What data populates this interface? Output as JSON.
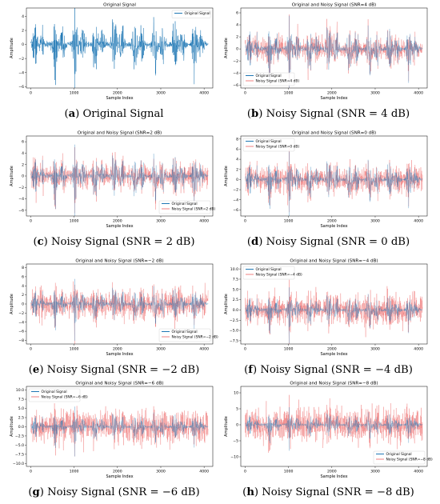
{
  "colors": {
    "original": "#1f77b4",
    "noisy": "#f08080"
  },
  "panels": [
    {
      "id": "a",
      "caption_letter": "a",
      "caption_text": "Original Signal",
      "chart_data": {
        "type": "line",
        "title": "Original Signal",
        "xlabel": "Sample Index",
        "ylabel": "Amplitude",
        "xlim": [
          -100,
          4200
        ],
        "ylim": [
          -6.2,
          5.2
        ],
        "xticks": [
          "0",
          "1000",
          "2000",
          "3000",
          "4000"
        ],
        "xtick_values": [
          0,
          1000,
          2000,
          3000,
          4000
        ],
        "yticks": [
          "−6",
          "−4",
          "−2",
          "0",
          "2",
          "4"
        ],
        "ytick_values": [
          -6,
          -4,
          -2,
          0,
          2,
          4
        ],
        "legend_position": "top-right",
        "series": [
          {
            "name": "Original Signal",
            "color": "#1f77b4",
            "peak_amplitude": 5.0,
            "sample_count": 4096
          }
        ]
      }
    },
    {
      "id": "b",
      "caption_letter": "b",
      "caption_text": "Noisy Signal (SNR = 4 dB)",
      "chart_data": {
        "type": "line",
        "title": "Original and Noisy Signal (SNR=4 dB)",
        "xlabel": "Sample Index",
        "ylabel": "Amplitude",
        "xlim": [
          -100,
          4200
        ],
        "ylim": [
          -6.5,
          6.8
        ],
        "xticks": [
          "0",
          "1000",
          "2000",
          "3000",
          "4000"
        ],
        "xtick_values": [
          0,
          1000,
          2000,
          3000,
          4000
        ],
        "yticks": [
          "−6",
          "−4",
          "−2",
          "0",
          "2",
          "4",
          "6"
        ],
        "ytick_values": [
          -6,
          -4,
          -2,
          0,
          2,
          4,
          6
        ],
        "legend_position": "bottom-left",
        "series": [
          {
            "name": "Original Signal",
            "color": "#1f77b4",
            "peak_amplitude": 5.0
          },
          {
            "name": "Noisy Signal (SNR=4 dB)",
            "color": "#f08080",
            "noise_amplitude": 1.8
          }
        ]
      }
    },
    {
      "id": "c",
      "caption_letter": "c",
      "caption_text": "Noisy Signal (SNR = 2 dB)",
      "chart_data": {
        "type": "line",
        "title": "Original and Noisy Signal (SNR=2 dB)",
        "xlabel": "Sample Index",
        "ylabel": "Amplitude",
        "xlim": [
          -100,
          4200
        ],
        "ylim": [
          -7,
          7
        ],
        "xticks": [
          "0",
          "1000",
          "2000",
          "3000",
          "4000"
        ],
        "xtick_values": [
          0,
          1000,
          2000,
          3000,
          4000
        ],
        "yticks": [
          "−6",
          "−4",
          "−2",
          "0",
          "2",
          "4",
          "6"
        ],
        "ytick_values": [
          -6,
          -4,
          -2,
          0,
          2,
          4,
          6
        ],
        "legend_position": "bottom-right",
        "series": [
          {
            "name": "Original Signal",
            "color": "#1f77b4",
            "peak_amplitude": 5.0
          },
          {
            "name": "Noisy Signal (SNR=2 dB)",
            "color": "#f08080",
            "noise_amplitude": 2.2
          }
        ]
      }
    },
    {
      "id": "d",
      "caption_letter": "d",
      "caption_text": "Noisy Signal (SNR = 0 dB)",
      "chart_data": {
        "type": "line",
        "title": "Original and Noisy Signal (SNR=0 dB)",
        "xlabel": "Sample Index",
        "ylabel": "Amplitude",
        "xlim": [
          -100,
          4200
        ],
        "ylim": [
          -7.2,
          8.6
        ],
        "xticks": [
          "0",
          "1000",
          "2000",
          "3000",
          "4000"
        ],
        "xtick_values": [
          0,
          1000,
          2000,
          3000,
          4000
        ],
        "yticks": [
          "−6",
          "−4",
          "−2",
          "0",
          "2",
          "4",
          "6",
          "8"
        ],
        "ytick_values": [
          -6,
          -4,
          -2,
          0,
          2,
          4,
          6,
          8
        ],
        "legend_position": "top-left",
        "series": [
          {
            "name": "Original Signal",
            "color": "#1f77b4",
            "peak_amplitude": 5.0
          },
          {
            "name": "Noisy Signal (SNR=0 dB)",
            "color": "#f08080",
            "noise_amplitude": 2.8
          }
        ]
      }
    },
    {
      "id": "e",
      "caption_letter": "e",
      "caption_text": "Noisy Signal (SNR = −2 dB)",
      "chart_data": {
        "type": "line",
        "title": "Original and Noisy Signal (SNR=−2 dB)",
        "xlabel": "Sample Index",
        "ylabel": "Amplitude",
        "xlim": [
          -100,
          4200
        ],
        "ylim": [
          -8.8,
          8.8
        ],
        "xticks": [
          "0",
          "1000",
          "2000",
          "3000",
          "4000"
        ],
        "xtick_values": [
          0,
          1000,
          2000,
          3000,
          4000
        ],
        "yticks": [
          "−8",
          "−6",
          "−4",
          "−2",
          "0",
          "2",
          "4",
          "6",
          "8"
        ],
        "ytick_values": [
          -8,
          -6,
          -4,
          -2,
          0,
          2,
          4,
          6,
          8
        ],
        "legend_position": "bottom-right",
        "series": [
          {
            "name": "Original Signal",
            "color": "#1f77b4",
            "peak_amplitude": 5.0
          },
          {
            "name": "Noisy Signal (SNR=−2 dB)",
            "color": "#f08080",
            "noise_amplitude": 3.4
          }
        ]
      }
    },
    {
      "id": "f",
      "caption_letter": "f",
      "caption_text": "Noisy Signal (SNR = −4 dB)",
      "chart_data": {
        "type": "line",
        "title": "Original and Noisy Signal (SNR=−4 dB)",
        "xlabel": "Sample Index",
        "ylabel": "Amplitude",
        "xlim": [
          -100,
          4200
        ],
        "ylim": [
          -8.3,
          11.2
        ],
        "xticks": [
          "0",
          "1000",
          "2000",
          "3000",
          "4000"
        ],
        "xtick_values": [
          0,
          1000,
          2000,
          3000,
          4000
        ],
        "yticks": [
          "−7.5",
          "−5.0",
          "−2.5",
          "0.0",
          "2.5",
          "5.0",
          "7.5",
          "10.0"
        ],
        "ytick_values": [
          -7.5,
          -5,
          -2.5,
          0,
          2.5,
          5,
          7.5,
          10
        ],
        "legend_position": "top-left",
        "series": [
          {
            "name": "Original Signal",
            "color": "#1f77b4",
            "peak_amplitude": 5.0
          },
          {
            "name": "Noisy Signal (SNR=−4 dB)",
            "color": "#f08080",
            "noise_amplitude": 4.2
          }
        ]
      }
    },
    {
      "id": "g",
      "caption_letter": "g",
      "caption_text": "Noisy Signal (SNR = −6 dB)",
      "chart_data": {
        "type": "line",
        "title": "Original and Noisy Signal (SNR=−6 dB)",
        "xlabel": "Sample Index",
        "ylabel": "Amplitude",
        "xlim": [
          -100,
          4200
        ],
        "ylim": [
          -10.8,
          11
        ],
        "xticks": [
          "0",
          "1000",
          "2000",
          "3000",
          "4000"
        ],
        "xtick_values": [
          0,
          1000,
          2000,
          3000,
          4000
        ],
        "yticks": [
          "−10.0",
          "−7.5",
          "−5.0",
          "−2.5",
          "0.0",
          "2.5",
          "5.0",
          "7.5",
          "10.0"
        ],
        "ytick_values": [
          -10,
          -7.5,
          -5,
          -2.5,
          0,
          2.5,
          5,
          7.5,
          10
        ],
        "legend_position": "top-left",
        "series": [
          {
            "name": "Original Signal",
            "color": "#1f77b4",
            "peak_amplitude": 5.0
          },
          {
            "name": "Noisy Signal (SNR=−6 dB)",
            "color": "#f08080",
            "noise_amplitude": 5.2
          }
        ]
      }
    },
    {
      "id": "h",
      "caption_letter": "h",
      "caption_text": "Noisy Signal (SNR = −8 dB)",
      "chart_data": {
        "type": "line",
        "title": "Original and Noisy Signal (SNR=−8 dB)",
        "xlabel": "Sample Index",
        "ylabel": "Amplitude",
        "xlim": [
          -100,
          4200
        ],
        "ylim": [
          -13,
          12
        ],
        "xticks": [
          "0",
          "1000",
          "2000",
          "3000",
          "4000"
        ],
        "xtick_values": [
          0,
          1000,
          2000,
          3000,
          4000
        ],
        "yticks": [
          "−10",
          "−5",
          "0",
          "5",
          "10"
        ],
        "ytick_values": [
          -10,
          -5,
          0,
          5,
          10
        ],
        "legend_position": "bottom-right",
        "series": [
          {
            "name": "Original Signal",
            "color": "#1f77b4",
            "peak_amplitude": 5.0
          },
          {
            "name": "Noisy Signal (SNR=−8 dB)",
            "color": "#f08080",
            "noise_amplitude": 6.5
          }
        ]
      }
    }
  ]
}
